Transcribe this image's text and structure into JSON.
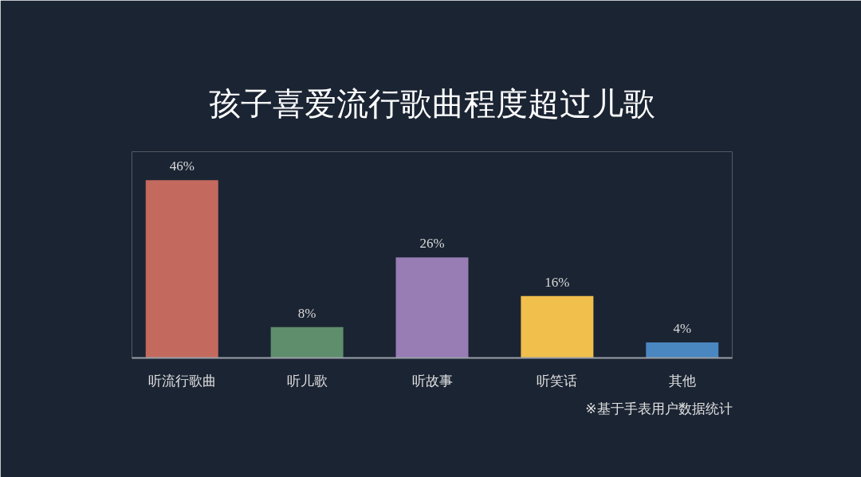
{
  "chart_data": {
    "type": "bar",
    "title": "孩子喜爱流行歌曲程度超过儿歌",
    "categories": [
      "听流行歌曲",
      "听儿歌",
      "听故事",
      "听笑话",
      "其他"
    ],
    "values": [
      46,
      8,
      26,
      16,
      4
    ],
    "colors": [
      "#c4695e",
      "#5e8e6c",
      "#987cb4",
      "#f0bf4c",
      "#4a86c0"
    ],
    "value_labels": [
      "46%",
      "8%",
      "26%",
      "16%",
      "4%"
    ],
    "annotations": [
      "※基于手表用户数据统计"
    ],
    "grid": false
  }
}
